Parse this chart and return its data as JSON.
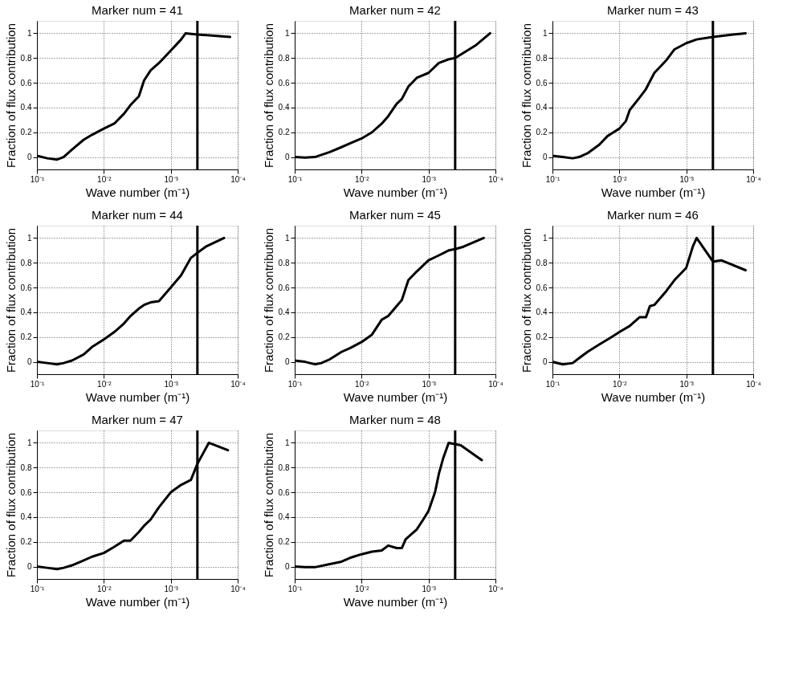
{
  "chart_data": [
    {
      "type": "line",
      "title": "Marker num = 41",
      "xlabel": "Wave number (m⁻¹)",
      "ylabel": "Fraction of flux contribution",
      "log": "x",
      "grid": true,
      "xlim": [
        0.1,
        0.0001
      ],
      "xticks": [
        {
          "value": 0.1,
          "label": "10⁻¹"
        },
        {
          "value": 0.01,
          "label": "10⁻²"
        },
        {
          "value": 0.001,
          "label": "10⁻³"
        },
        {
          "value": 0.0001,
          "label": "10⁻⁴"
        }
      ],
      "ylim": [
        -0.1,
        1.1
      ],
      "yticks": [
        0,
        0.2,
        0.4,
        0.6,
        0.8,
        1
      ],
      "ref_lines": [
        {
          "axis": "x",
          "value": 0.0004,
          "color": "#000000"
        }
      ],
      "series": [
        {
          "color": "#000000",
          "x": [
            0.1,
            0.07,
            0.05,
            0.04,
            0.03,
            0.02,
            0.015,
            0.01,
            0.007,
            0.005,
            0.004,
            0.003,
            0.0025,
            0.002,
            0.0015,
            0.001,
            0.0007,
            0.0006,
            0.0004,
            0.00013
          ],
          "values": [
            0.01,
            -0.01,
            -0.02,
            0.0,
            0.06,
            0.14,
            0.18,
            0.23,
            0.27,
            0.35,
            0.42,
            0.49,
            0.62,
            0.7,
            0.76,
            0.86,
            0.95,
            1.0,
            0.99,
            0.97
          ]
        }
      ]
    },
    {
      "type": "line",
      "title": "Marker num = 42",
      "xlabel": "Wave number (m⁻¹)",
      "ylabel": "Fraction of flux contribution",
      "log": "x",
      "grid": true,
      "xlim": [
        0.1,
        0.0001
      ],
      "xticks": [
        {
          "value": 0.1,
          "label": "10⁻¹"
        },
        {
          "value": 0.01,
          "label": "10⁻²"
        },
        {
          "value": 0.001,
          "label": "10⁻³"
        },
        {
          "value": 0.0001,
          "label": "10⁻⁴"
        }
      ],
      "ylim": [
        -0.1,
        1.1
      ],
      "yticks": [
        0,
        0.2,
        0.4,
        0.6,
        0.8,
        1
      ],
      "ref_lines": [
        {
          "axis": "x",
          "value": 0.0004,
          "color": "#000000"
        }
      ],
      "series": [
        {
          "color": "#000000",
          "x": [
            0.1,
            0.07,
            0.05,
            0.03,
            0.02,
            0.015,
            0.01,
            0.007,
            0.005,
            0.004,
            0.003,
            0.0025,
            0.002,
            0.0015,
            0.001,
            0.0007,
            0.0005,
            0.0004,
            0.0002,
            0.00012
          ],
          "values": [
            0.0,
            -0.005,
            0.0,
            0.04,
            0.08,
            0.11,
            0.15,
            0.2,
            0.27,
            0.33,
            0.43,
            0.47,
            0.57,
            0.64,
            0.68,
            0.76,
            0.79,
            0.8,
            0.9,
            1.0
          ]
        }
      ]
    },
    {
      "type": "line",
      "title": "Marker num = 43",
      "xlabel": "Wave number (m⁻¹)",
      "ylabel": "Fraction of flux contribution",
      "log": "x",
      "grid": true,
      "xlim": [
        0.1,
        0.0001
      ],
      "xticks": [
        {
          "value": 0.1,
          "label": "10⁻¹"
        },
        {
          "value": 0.01,
          "label": "10⁻²"
        },
        {
          "value": 0.001,
          "label": "10⁻³"
        },
        {
          "value": 0.0001,
          "label": "10⁻⁴"
        }
      ],
      "ylim": [
        -0.1,
        1.1
      ],
      "yticks": [
        0,
        0.2,
        0.4,
        0.6,
        0.8,
        1
      ],
      "ref_lines": [
        {
          "axis": "x",
          "value": 0.0004,
          "color": "#000000"
        }
      ],
      "series": [
        {
          "color": "#000000",
          "x": [
            0.1,
            0.07,
            0.05,
            0.04,
            0.03,
            0.02,
            0.015,
            0.01,
            0.008,
            0.007,
            0.005,
            0.004,
            0.003,
            0.002,
            0.0015,
            0.001,
            0.0007,
            0.0004,
            0.0002,
            0.00013
          ],
          "values": [
            0.01,
            0.0,
            -0.01,
            0.0,
            0.03,
            0.1,
            0.17,
            0.23,
            0.29,
            0.38,
            0.48,
            0.55,
            0.68,
            0.78,
            0.87,
            0.92,
            0.95,
            0.97,
            0.99,
            1.0
          ]
        }
      ]
    },
    {
      "type": "line",
      "title": "Marker num = 44",
      "xlabel": "Wave number (m⁻¹)",
      "ylabel": "Fraction of flux contribution",
      "log": "x",
      "grid": true,
      "xlim": [
        0.1,
        0.0001
      ],
      "xticks": [
        {
          "value": 0.1,
          "label": "10⁻¹"
        },
        {
          "value": 0.01,
          "label": "10⁻²"
        },
        {
          "value": 0.001,
          "label": "10⁻³"
        },
        {
          "value": 0.0001,
          "label": "10⁻⁴"
        }
      ],
      "ylim": [
        -0.1,
        1.1
      ],
      "yticks": [
        0,
        0.2,
        0.4,
        0.6,
        0.8,
        1
      ],
      "ref_lines": [
        {
          "axis": "x",
          "value": 0.0004,
          "color": "#000000"
        }
      ],
      "series": [
        {
          "color": "#000000",
          "x": [
            0.1,
            0.07,
            0.05,
            0.04,
            0.03,
            0.02,
            0.015,
            0.01,
            0.007,
            0.005,
            0.004,
            0.003,
            0.0025,
            0.002,
            0.0015,
            0.001,
            0.0007,
            0.0005,
            0.0004,
            0.0003,
            0.00016
          ],
          "values": [
            0.0,
            -0.01,
            -0.02,
            -0.01,
            0.01,
            0.06,
            0.12,
            0.18,
            0.24,
            0.31,
            0.37,
            0.43,
            0.46,
            0.48,
            0.49,
            0.6,
            0.7,
            0.84,
            0.88,
            0.93,
            1.0
          ]
        }
      ]
    },
    {
      "type": "line",
      "title": "Marker num = 45",
      "xlabel": "Wave number (m⁻¹)",
      "ylabel": "Fraction of flux contribution",
      "log": "x",
      "grid": true,
      "xlim": [
        0.1,
        0.0001
      ],
      "xticks": [
        {
          "value": 0.1,
          "label": "10⁻¹"
        },
        {
          "value": 0.01,
          "label": "10⁻²"
        },
        {
          "value": 0.001,
          "label": "10⁻³"
        },
        {
          "value": 0.0001,
          "label": "10⁻⁴"
        }
      ],
      "ylim": [
        -0.1,
        1.1
      ],
      "yticks": [
        0,
        0.2,
        0.4,
        0.6,
        0.8,
        1
      ],
      "ref_lines": [
        {
          "axis": "x",
          "value": 0.0004,
          "color": "#000000"
        }
      ],
      "series": [
        {
          "color": "#000000",
          "x": [
            0.1,
            0.07,
            0.05,
            0.04,
            0.03,
            0.02,
            0.015,
            0.01,
            0.007,
            0.005,
            0.004,
            0.003,
            0.0025,
            0.002,
            0.0015,
            0.001,
            0.0007,
            0.0005,
            0.0004,
            0.0003,
            0.00015
          ],
          "values": [
            0.01,
            0.0,
            -0.02,
            -0.01,
            0.02,
            0.08,
            0.11,
            0.16,
            0.22,
            0.34,
            0.37,
            0.45,
            0.5,
            0.66,
            0.73,
            0.82,
            0.86,
            0.9,
            0.91,
            0.93,
            1.0
          ]
        }
      ]
    },
    {
      "type": "line",
      "title": "Marker num = 46",
      "xlabel": "Wave number (m⁻¹)",
      "ylabel": "Fraction of flux contribution",
      "log": "x",
      "grid": true,
      "xlim": [
        0.1,
        0.0001
      ],
      "xticks": [
        {
          "value": 0.1,
          "label": "10⁻¹"
        },
        {
          "value": 0.01,
          "label": "10⁻²"
        },
        {
          "value": 0.001,
          "label": "10⁻³"
        },
        {
          "value": 0.0001,
          "label": "10⁻⁴"
        }
      ],
      "ylim": [
        -0.1,
        1.1
      ],
      "yticks": [
        0,
        0.2,
        0.4,
        0.6,
        0.8,
        1
      ],
      "ref_lines": [
        {
          "axis": "x",
          "value": 0.0004,
          "color": "#000000"
        }
      ],
      "series": [
        {
          "color": "#000000",
          "x": [
            0.1,
            0.07,
            0.05,
            0.04,
            0.03,
            0.02,
            0.015,
            0.01,
            0.007,
            0.005,
            0.004,
            0.0035,
            0.003,
            0.002,
            0.0015,
            0.001,
            0.0008,
            0.0007,
            0.0004,
            0.0003,
            0.00013
          ],
          "values": [
            0.0,
            -0.02,
            -0.01,
            0.03,
            0.08,
            0.14,
            0.18,
            0.24,
            0.29,
            0.36,
            0.36,
            0.45,
            0.46,
            0.57,
            0.66,
            0.76,
            0.93,
            1.0,
            0.81,
            0.82,
            0.74
          ]
        }
      ]
    },
    {
      "type": "line",
      "title": "Marker num = 47",
      "xlabel": "Wave number (m⁻¹)",
      "ylabel": "Fraction of flux contribution",
      "log": "x",
      "grid": true,
      "xlim": [
        0.1,
        0.0001
      ],
      "xticks": [
        {
          "value": 0.1,
          "label": "10⁻¹"
        },
        {
          "value": 0.01,
          "label": "10⁻²"
        },
        {
          "value": 0.001,
          "label": "10⁻³"
        },
        {
          "value": 0.0001,
          "label": "10⁻⁴"
        }
      ],
      "ylim": [
        -0.1,
        1.1
      ],
      "yticks": [
        0,
        0.2,
        0.4,
        0.6,
        0.8,
        1
      ],
      "ref_lines": [
        {
          "axis": "x",
          "value": 0.0004,
          "color": "#000000"
        }
      ],
      "series": [
        {
          "color": "#000000",
          "x": [
            0.1,
            0.07,
            0.05,
            0.04,
            0.03,
            0.02,
            0.015,
            0.01,
            0.007,
            0.005,
            0.004,
            0.003,
            0.0025,
            0.002,
            0.0015,
            0.001,
            0.0007,
            0.0005,
            0.0004,
            0.00027,
            0.00014
          ],
          "values": [
            0.0,
            -0.01,
            -0.02,
            -0.01,
            0.01,
            0.05,
            0.08,
            0.11,
            0.16,
            0.21,
            0.21,
            0.28,
            0.33,
            0.38,
            0.48,
            0.6,
            0.66,
            0.7,
            0.83,
            1.0,
            0.94
          ]
        }
      ]
    },
    {
      "type": "line",
      "title": "Marker num = 48",
      "xlabel": "Wave number (m⁻¹)",
      "ylabel": "Fraction of flux contribution",
      "log": "x",
      "grid": true,
      "xlim": [
        0.1,
        0.0001
      ],
      "xticks": [
        {
          "value": 0.1,
          "label": "10⁻¹"
        },
        {
          "value": 0.01,
          "label": "10⁻²"
        },
        {
          "value": 0.001,
          "label": "10⁻³"
        },
        {
          "value": 0.0001,
          "label": "10⁻⁴"
        }
      ],
      "ylim": [
        -0.1,
        1.1
      ],
      "yticks": [
        0,
        0.2,
        0.4,
        0.6,
        0.8,
        1
      ],
      "ref_lines": [
        {
          "axis": "x",
          "value": 0.0004,
          "color": "#000000"
        }
      ],
      "series": [
        {
          "color": "#000000",
          "x": [
            0.1,
            0.07,
            0.05,
            0.03,
            0.02,
            0.015,
            0.01,
            0.007,
            0.005,
            0.004,
            0.003,
            0.0025,
            0.0022,
            0.0015,
            0.0012,
            0.001,
            0.0008,
            0.0007,
            0.0006,
            0.0005,
            0.00033,
            0.00016
          ],
          "values": [
            0.0,
            -0.005,
            -0.005,
            0.02,
            0.04,
            0.07,
            0.1,
            0.12,
            0.13,
            0.17,
            0.15,
            0.15,
            0.22,
            0.3,
            0.38,
            0.45,
            0.6,
            0.75,
            0.88,
            1.0,
            0.98,
            0.86
          ]
        }
      ]
    }
  ]
}
